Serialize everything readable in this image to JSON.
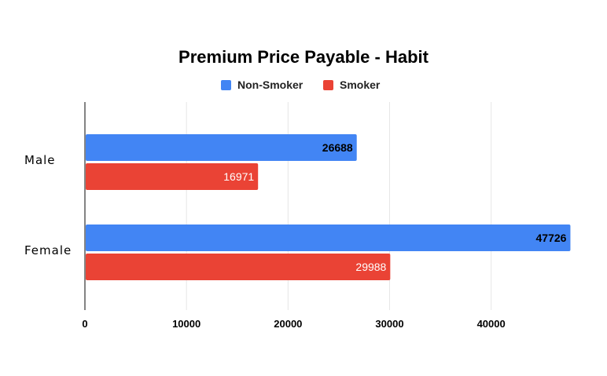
{
  "chart_data": {
    "type": "bar",
    "orientation": "horizontal",
    "title": "Premium Price Payable - Habit",
    "xlabel": "",
    "ylabel": "",
    "categories": [
      "Male",
      "Female"
    ],
    "series": [
      {
        "name": "Non-Smoker",
        "values": [
          26688,
          47726
        ],
        "color": "#4285F4"
      },
      {
        "name": "Smoker",
        "values": [
          16971,
          29988
        ],
        "color": "#EA4335"
      }
    ],
    "xlim": [
      0,
      47726
    ],
    "ticks": [
      0,
      10000,
      20000,
      30000,
      40000
    ],
    "tick_labels": [
      "0",
      "10000",
      "20000",
      "30000",
      "40000"
    ],
    "data_labels": [
      [
        "26688",
        "47726"
      ],
      [
        "16971",
        "29988"
      ]
    ],
    "legend_position": "top-center",
    "grid": true
  }
}
